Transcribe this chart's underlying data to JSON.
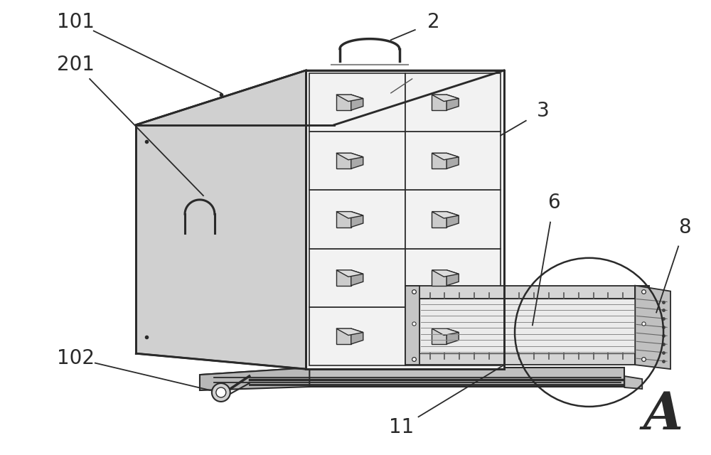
{
  "bg_color": "#ffffff",
  "line_color": "#2a2a2a",
  "line_width": 1.8,
  "fill_top": "#e8e8e8",
  "fill_left": "#d0d0d0",
  "fill_front": "#f2f2f2",
  "fill_base": "#e0e0e0",
  "fill_tray": "#e5e5e5",
  "fill_tray_dark": "#c8c8c8",
  "label_fontsize": 20,
  "annotation_lw": 1.3
}
